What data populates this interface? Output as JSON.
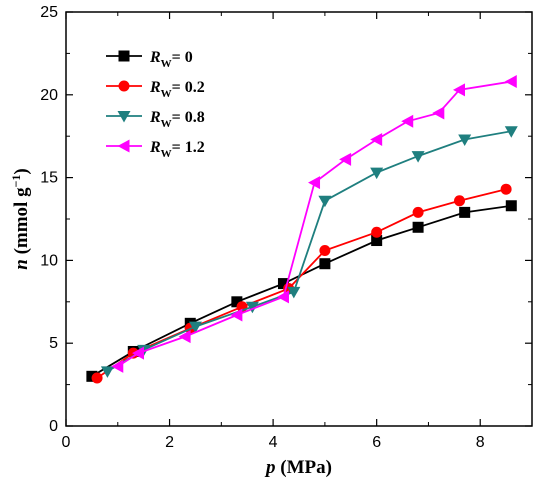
{
  "chart_data": {
    "type": "line",
    "xlabel": {
      "var": "p",
      "unit": " (MPa)"
    },
    "ylabel": {
      "var": "n",
      "unit": " (mmol g",
      "sup": "−1",
      "close": ")"
    },
    "xlim": [
      0,
      9
    ],
    "ylim": [
      0,
      25
    ],
    "xticks": [
      "0",
      "2",
      "4",
      "6",
      "8"
    ],
    "yticks": [
      "0",
      "5",
      "10",
      "15",
      "20",
      "25"
    ],
    "legend_position": "top-left",
    "grid": false,
    "series": [
      {
        "name": "R_W = 0",
        "legend": {
          "var": "R",
          "sub": "W",
          "text": "= 0"
        },
        "color": "#000000",
        "marker": "square",
        "x": [
          0.5,
          1.3,
          2.4,
          3.3,
          4.2,
          5.0,
          6.0,
          6.8,
          7.7,
          8.6
        ],
        "y": [
          3.0,
          4.5,
          6.2,
          7.5,
          8.6,
          9.8,
          11.2,
          12.0,
          12.9,
          13.3
        ]
      },
      {
        "name": "R_W = 0.2",
        "legend": {
          "var": "R",
          "sub": "W",
          "text": "= 0.2"
        },
        "color": "#ff0000",
        "marker": "circle",
        "x": [
          0.6,
          1.3,
          2.4,
          3.4,
          4.3,
          5.0,
          6.0,
          6.8,
          7.6,
          8.5
        ],
        "y": [
          2.9,
          4.4,
          5.9,
          7.2,
          8.3,
          10.6,
          11.7,
          12.9,
          13.6,
          14.3
        ]
      },
      {
        "name": "R_W = 0.8",
        "legend": {
          "var": "R",
          "sub": "W",
          "text": "= 0.8"
        },
        "color": "#1f7f7f",
        "marker": "triangle-down",
        "x": [
          0.8,
          1.5,
          2.5,
          3.6,
          4.4,
          5.0,
          6.0,
          6.8,
          7.7,
          8.6
        ],
        "y": [
          3.3,
          4.6,
          6.0,
          7.2,
          8.1,
          13.6,
          15.3,
          16.3,
          17.3,
          17.8
        ]
      },
      {
        "name": "R_W = 1.2",
        "legend": {
          "var": "R",
          "sub": "W",
          "text": "= 1.2"
        },
        "color": "#ff00ff",
        "marker": "triangle-left",
        "x": [
          1.0,
          1.4,
          2.3,
          3.3,
          4.2,
          4.8,
          5.4,
          6.0,
          6.6,
          7.2,
          7.6,
          8.6
        ],
        "y": [
          3.6,
          4.4,
          5.4,
          6.7,
          7.8,
          14.7,
          16.1,
          17.3,
          18.4,
          18.9,
          20.3,
          20.8
        ]
      }
    ]
  }
}
